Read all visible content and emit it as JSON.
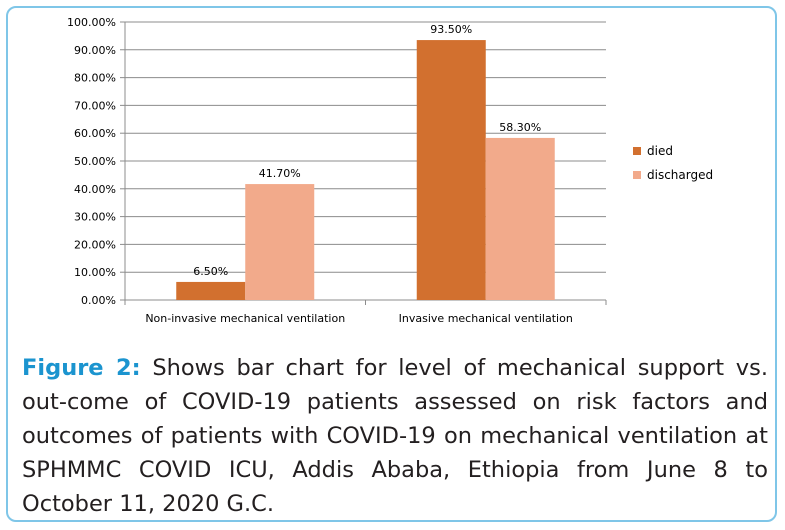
{
  "chart_data": {
    "type": "bar",
    "categories": [
      "Non-invasive mechanical ventilation",
      "Invasive mechanical ventilation"
    ],
    "series": [
      {
        "name": "died",
        "values": [
          6.5,
          93.5
        ],
        "labels": [
          "6.50%",
          "93.50%"
        ],
        "color": "#d2702f"
      },
      {
        "name": "discharged",
        "values": [
          41.7,
          58.3
        ],
        "labels": [
          "41.70%",
          "58.30%"
        ],
        "color": "#f2aa8b"
      }
    ],
    "ylim": [
      0,
      100
    ],
    "yticks": [
      0,
      10,
      20,
      30,
      40,
      50,
      60,
      70,
      80,
      90,
      100
    ],
    "ytick_labels": [
      "0.00%",
      "10.00%",
      "20.00%",
      "30.00%",
      "40.00%",
      "50.00%",
      "60.00%",
      "70.00%",
      "80.00%",
      "90.00%",
      "100.00%"
    ],
    "grid": true,
    "legend": "right",
    "title": "",
    "xlabel": "",
    "ylabel": ""
  },
  "caption": {
    "label": "Figure 2:",
    "text": " Shows bar chart for level of mechanical support vs. out-come of COVID-19 patients assessed on risk factors and outcomes of patients with COVID-19 on mechanical ventilation at SPHMMC COVID ICU, Addis Ababa, Ethiopia from June 8 to October 11, 2020 G.C."
  },
  "colors": {
    "frame_border": "#7fc6e8",
    "caption_label": "#1b94cf",
    "gridline": "#8c8c8c"
  }
}
